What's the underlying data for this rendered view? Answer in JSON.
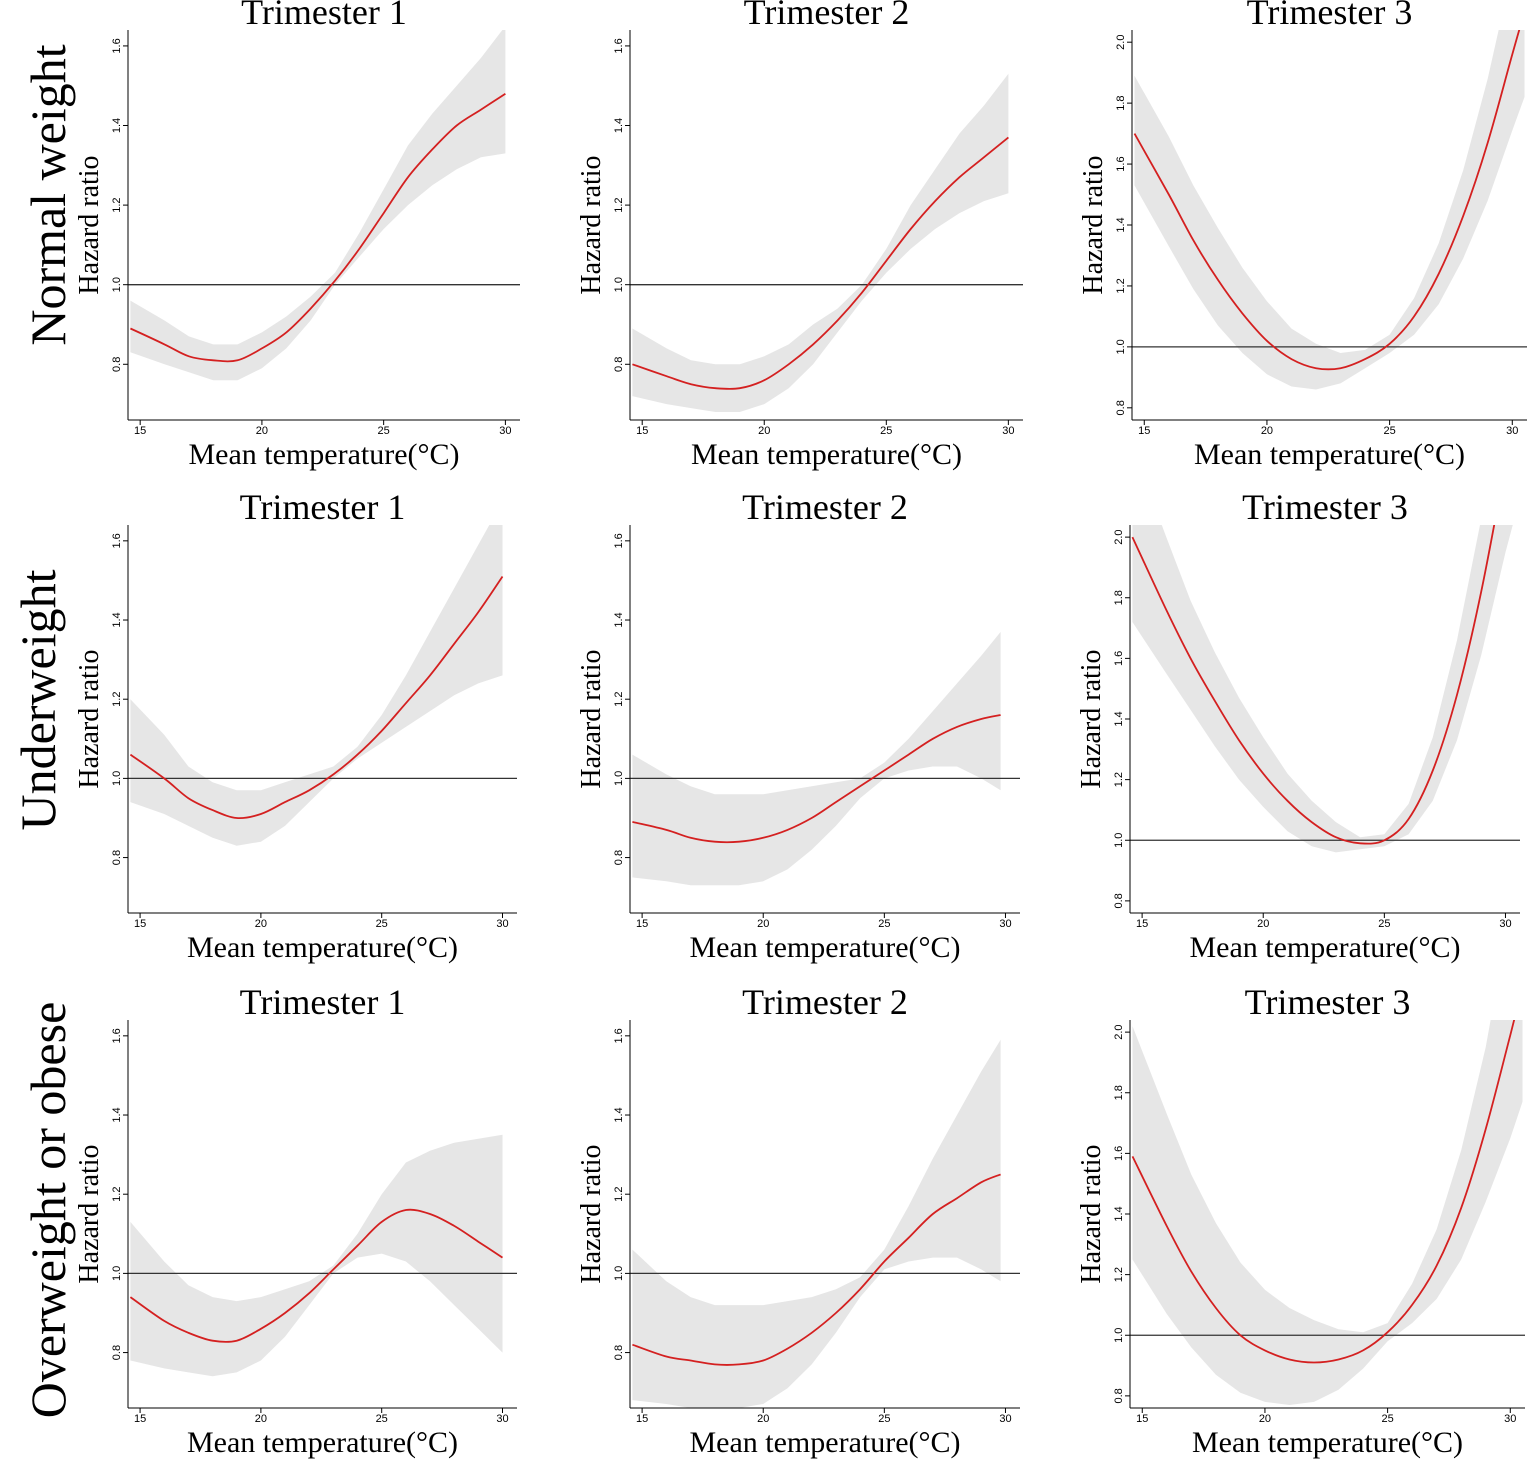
{
  "figure": {
    "row_labels": [
      "Normal weight",
      "Underweight",
      "Overweight or obese"
    ],
    "x_axis_label": "Mean temperature(°C)",
    "y_axis_label": "Hazard ratio",
    "colors": {
      "curve": "#d42020",
      "band": "#e6e6e6",
      "reference": "#333333",
      "axis": "#000000"
    }
  },
  "chart_data": [
    {
      "type": "line",
      "panel": "normal-weight-trimester-1",
      "row": "Normal weight",
      "title": "Trimester 1",
      "xlabel": "Mean temperature(°C)",
      "ylabel": "Hazard ratio",
      "xlim": [
        14.5,
        30.6
      ],
      "ylim": [
        0.66,
        1.64
      ],
      "xticks": [
        15,
        20,
        25,
        30
      ],
      "xtick_labels": [
        "15",
        "20",
        "25",
        "30"
      ],
      "yticks": [
        0.8,
        1.0,
        1.2,
        1.4,
        1.6
      ],
      "ytick_labels": [
        "0.8",
        "1.0",
        "1.2",
        "1.4",
        "1.6"
      ],
      "reference_line": 1.0,
      "x": [
        14.6,
        16,
        17,
        18,
        19,
        20,
        21,
        22,
        23,
        24,
        25,
        26,
        27,
        28,
        29,
        30
      ],
      "hr": [
        0.89,
        0.85,
        0.82,
        0.81,
        0.81,
        0.84,
        0.88,
        0.94,
        1.01,
        1.09,
        1.18,
        1.27,
        1.34,
        1.4,
        1.44,
        1.48
      ],
      "lower": [
        0.83,
        0.8,
        0.78,
        0.76,
        0.76,
        0.79,
        0.84,
        0.91,
        1.0,
        1.07,
        1.14,
        1.2,
        1.25,
        1.29,
        1.32,
        1.33
      ],
      "upper": [
        0.96,
        0.91,
        0.87,
        0.85,
        0.85,
        0.88,
        0.92,
        0.97,
        1.03,
        1.13,
        1.24,
        1.35,
        1.43,
        1.5,
        1.57,
        1.65
      ]
    },
    {
      "type": "line",
      "panel": "normal-weight-trimester-2",
      "row": "Normal weight",
      "title": "Trimester 2",
      "xlabel": "Mean temperature(°C)",
      "ylabel": "Hazard ratio",
      "xlim": [
        14.5,
        30.6
      ],
      "ylim": [
        0.66,
        1.64
      ],
      "xticks": [
        15,
        20,
        25,
        30
      ],
      "xtick_labels": [
        "15",
        "20",
        "25",
        "30"
      ],
      "yticks": [
        0.8,
        1.0,
        1.2,
        1.4,
        1.6
      ],
      "ytick_labels": [
        "0.8",
        "1.0",
        "1.2",
        "1.4",
        "1.6"
      ],
      "reference_line": 1.0,
      "x": [
        14.6,
        16,
        17,
        18,
        19,
        20,
        21,
        22,
        23,
        24,
        25,
        26,
        27,
        28,
        29,
        30
      ],
      "hr": [
        0.8,
        0.77,
        0.75,
        0.74,
        0.74,
        0.76,
        0.8,
        0.85,
        0.91,
        0.98,
        1.06,
        1.14,
        1.21,
        1.27,
        1.32,
        1.37
      ],
      "lower": [
        0.72,
        0.7,
        0.69,
        0.68,
        0.68,
        0.7,
        0.74,
        0.8,
        0.88,
        0.96,
        1.03,
        1.09,
        1.14,
        1.18,
        1.21,
        1.23
      ],
      "upper": [
        0.89,
        0.84,
        0.81,
        0.8,
        0.8,
        0.82,
        0.85,
        0.9,
        0.94,
        1.0,
        1.09,
        1.2,
        1.29,
        1.38,
        1.45,
        1.53
      ]
    },
    {
      "type": "line",
      "panel": "normal-weight-trimester-3",
      "row": "Normal weight",
      "title": "Trimester 3",
      "xlabel": "Mean temperature(°C)",
      "ylabel": "Hazard ratio",
      "xlim": [
        14.5,
        30.6
      ],
      "ylim": [
        0.76,
        2.04
      ],
      "xticks": [
        15,
        20,
        25,
        30
      ],
      "xtick_labels": [
        "15",
        "20",
        "25",
        "30"
      ],
      "yticks": [
        0.8,
        1.0,
        1.2,
        1.4,
        1.6,
        1.8,
        2.0
      ],
      "ytick_labels": [
        "0.8",
        "1.0",
        "1.2",
        "1.4",
        "1.6",
        "1.8",
        "2.0"
      ],
      "reference_line": 1.0,
      "x": [
        14.6,
        16,
        17,
        18,
        19,
        20,
        21,
        22,
        23,
        24,
        25,
        26,
        27,
        28,
        29,
        30,
        30.5
      ],
      "hr": [
        1.7,
        1.5,
        1.35,
        1.22,
        1.11,
        1.02,
        0.96,
        0.93,
        0.93,
        0.96,
        1.01,
        1.1,
        1.24,
        1.43,
        1.67,
        1.96,
        2.1
      ],
      "lower": [
        1.53,
        1.33,
        1.19,
        1.07,
        0.98,
        0.91,
        0.87,
        0.86,
        0.88,
        0.93,
        0.98,
        1.04,
        1.14,
        1.29,
        1.48,
        1.71,
        1.82
      ],
      "upper": [
        1.89,
        1.69,
        1.53,
        1.39,
        1.26,
        1.15,
        1.06,
        1.01,
        0.98,
        0.99,
        1.04,
        1.16,
        1.34,
        1.58,
        1.88,
        2.24,
        2.42
      ]
    },
    {
      "type": "line",
      "panel": "underweight-trimester-1",
      "row": "Underweight",
      "title": "Trimester 1",
      "xlabel": "Mean temperature(°C)",
      "ylabel": "Hazard ratio",
      "xlim": [
        14.5,
        30.6
      ],
      "ylim": [
        0.66,
        1.64
      ],
      "xticks": [
        15,
        20,
        25,
        30
      ],
      "xtick_labels": [
        "15",
        "20",
        "25",
        "30"
      ],
      "yticks": [
        0.8,
        1.0,
        1.2,
        1.4,
        1.6
      ],
      "ytick_labels": [
        "0.8",
        "1.0",
        "1.2",
        "1.4",
        "1.6"
      ],
      "reference_line": 1.0,
      "x": [
        14.6,
        16,
        17,
        18,
        19,
        20,
        21,
        22,
        23,
        24,
        25,
        26,
        27,
        28,
        29,
        30
      ],
      "hr": [
        1.06,
        1.0,
        0.95,
        0.92,
        0.9,
        0.91,
        0.94,
        0.97,
        1.01,
        1.06,
        1.12,
        1.19,
        1.26,
        1.34,
        1.42,
        1.51
      ],
      "lower": [
        0.94,
        0.91,
        0.88,
        0.85,
        0.83,
        0.84,
        0.88,
        0.94,
        1.0,
        1.05,
        1.09,
        1.13,
        1.17,
        1.21,
        1.24,
        1.26
      ],
      "upper": [
        1.2,
        1.11,
        1.03,
        0.99,
        0.97,
        0.97,
        0.99,
        1.01,
        1.03,
        1.08,
        1.16,
        1.26,
        1.37,
        1.48,
        1.59,
        1.7
      ]
    },
    {
      "type": "line",
      "panel": "underweight-trimester-2",
      "row": "Underweight",
      "title": "Trimester 2",
      "xlabel": "Mean temperature(°C)",
      "ylabel": "Hazard ratio",
      "xlim": [
        14.5,
        30.6
      ],
      "ylim": [
        0.66,
        1.64
      ],
      "xticks": [
        15,
        20,
        25,
        30
      ],
      "xtick_labels": [
        "15",
        "20",
        "25",
        "30"
      ],
      "yticks": [
        0.8,
        1.0,
        1.2,
        1.4,
        1.6
      ],
      "ytick_labels": [
        "0.8",
        "1.0",
        "1.2",
        "1.4",
        "1.6"
      ],
      "reference_line": 1.0,
      "x": [
        14.6,
        16,
        17,
        18,
        19,
        20,
        21,
        22,
        23,
        24,
        25,
        26,
        27,
        28,
        29,
        29.8
      ],
      "hr": [
        0.89,
        0.87,
        0.85,
        0.84,
        0.84,
        0.85,
        0.87,
        0.9,
        0.94,
        0.98,
        1.02,
        1.06,
        1.1,
        1.13,
        1.15,
        1.16
      ],
      "lower": [
        0.75,
        0.74,
        0.73,
        0.73,
        0.73,
        0.74,
        0.77,
        0.82,
        0.88,
        0.95,
        1.0,
        1.02,
        1.03,
        1.03,
        1.0,
        0.97
      ],
      "upper": [
        1.06,
        1.01,
        0.98,
        0.96,
        0.96,
        0.96,
        0.97,
        0.98,
        0.99,
        1.0,
        1.04,
        1.1,
        1.17,
        1.24,
        1.31,
        1.37
      ]
    },
    {
      "type": "line",
      "panel": "underweight-trimester-3",
      "row": "Underweight",
      "title": "Trimester 3",
      "xlabel": "Mean temperature(°C)",
      "ylabel": "Hazard ratio",
      "xlim": [
        14.5,
        30.6
      ],
      "ylim": [
        0.76,
        2.04
      ],
      "xticks": [
        15,
        20,
        25,
        30
      ],
      "xtick_labels": [
        "15",
        "20",
        "25",
        "30"
      ],
      "yticks": [
        0.8,
        1.0,
        1.2,
        1.4,
        1.6,
        1.8,
        2.0
      ],
      "ytick_labels": [
        "0.8",
        "1.0",
        "1.2",
        "1.4",
        "1.6",
        "1.8",
        "2.0"
      ],
      "reference_line": 1.0,
      "x": [
        14.6,
        16,
        17,
        18,
        19,
        20,
        21,
        22,
        23,
        24,
        25,
        26,
        27,
        28,
        29,
        30,
        30.5
      ],
      "hr": [
        2.0,
        1.76,
        1.6,
        1.46,
        1.33,
        1.22,
        1.13,
        1.06,
        1.01,
        0.99,
        1.0,
        1.07,
        1.23,
        1.48,
        1.82,
        2.24,
        2.45
      ],
      "lower": [
        1.72,
        1.55,
        1.43,
        1.31,
        1.2,
        1.11,
        1.03,
        0.98,
        0.96,
        0.97,
        0.98,
        1.02,
        1.13,
        1.33,
        1.61,
        1.95,
        2.1
      ],
      "upper": [
        2.3,
        2.0,
        1.79,
        1.62,
        1.47,
        1.34,
        1.22,
        1.13,
        1.06,
        1.01,
        1.02,
        1.12,
        1.34,
        1.66,
        2.06,
        2.55,
        2.8
      ]
    },
    {
      "type": "line",
      "panel": "overweight-or-obese-trimester-1",
      "row": "Overweight or obese",
      "title": "Trimester 1",
      "xlabel": "Mean temperature(°C)",
      "ylabel": "Hazard ratio",
      "xlim": [
        14.5,
        30.6
      ],
      "ylim": [
        0.66,
        1.64
      ],
      "xticks": [
        15,
        20,
        25,
        30
      ],
      "xtick_labels": [
        "15",
        "20",
        "25",
        "30"
      ],
      "yticks": [
        0.8,
        1.0,
        1.2,
        1.4,
        1.6
      ],
      "ytick_labels": [
        "0.8",
        "1.0",
        "1.2",
        "1.4",
        "1.6"
      ],
      "reference_line": 1.0,
      "x": [
        14.6,
        16,
        17,
        18,
        19,
        20,
        21,
        22,
        23,
        24,
        25,
        26,
        27,
        28,
        29,
        30
      ],
      "hr": [
        0.94,
        0.88,
        0.85,
        0.83,
        0.83,
        0.86,
        0.9,
        0.95,
        1.01,
        1.07,
        1.13,
        1.16,
        1.15,
        1.12,
        1.08,
        1.04
      ],
      "lower": [
        0.78,
        0.76,
        0.75,
        0.74,
        0.75,
        0.78,
        0.84,
        0.92,
        1.0,
        1.04,
        1.05,
        1.03,
        0.98,
        0.92,
        0.86,
        0.8
      ],
      "upper": [
        1.13,
        1.03,
        0.97,
        0.94,
        0.93,
        0.94,
        0.96,
        0.98,
        1.02,
        1.1,
        1.2,
        1.28,
        1.31,
        1.33,
        1.34,
        1.35
      ]
    },
    {
      "type": "line",
      "panel": "overweight-or-obese-trimester-2",
      "row": "Overweight or obese",
      "title": "Trimester 2",
      "xlabel": "Mean temperature(°C)",
      "ylabel": "Hazard ratio",
      "xlim": [
        14.5,
        30.6
      ],
      "ylim": [
        0.66,
        1.64
      ],
      "xticks": [
        15,
        20,
        25,
        30
      ],
      "xtick_labels": [
        "15",
        "20",
        "25",
        "30"
      ],
      "yticks": [
        0.8,
        1.0,
        1.2,
        1.4,
        1.6
      ],
      "ytick_labels": [
        "0.8",
        "1.0",
        "1.2",
        "1.4",
        "1.6"
      ],
      "reference_line": 1.0,
      "x": [
        14.6,
        16,
        17,
        18,
        19,
        20,
        21,
        22,
        23,
        24,
        25,
        26,
        27,
        28,
        29,
        29.8
      ],
      "hr": [
        0.82,
        0.79,
        0.78,
        0.77,
        0.77,
        0.78,
        0.81,
        0.85,
        0.9,
        0.96,
        1.03,
        1.09,
        1.15,
        1.19,
        1.23,
        1.25
      ],
      "lower": [
        0.68,
        0.67,
        0.66,
        0.66,
        0.66,
        0.67,
        0.71,
        0.77,
        0.85,
        0.94,
        1.01,
        1.03,
        1.04,
        1.04,
        1.01,
        0.98
      ],
      "upper": [
        1.06,
        0.98,
        0.94,
        0.92,
        0.92,
        0.92,
        0.93,
        0.94,
        0.96,
        0.99,
        1.06,
        1.17,
        1.29,
        1.4,
        1.51,
        1.59
      ]
    },
    {
      "type": "line",
      "panel": "overweight-or-obese-trimester-3",
      "row": "Overweight or obese",
      "title": "Trimester 3",
      "xlabel": "Mean temperature(°C)",
      "ylabel": "Hazard ratio",
      "xlim": [
        14.5,
        30.6
      ],
      "ylim": [
        0.76,
        2.04
      ],
      "xticks": [
        15,
        20,
        25,
        30
      ],
      "xtick_labels": [
        "15",
        "20",
        "25",
        "30"
      ],
      "yticks": [
        0.8,
        1.0,
        1.2,
        1.4,
        1.6,
        1.8,
        2.0
      ],
      "ytick_labels": [
        "0.8",
        "1.0",
        "1.2",
        "1.4",
        "1.6",
        "1.8",
        "2.0"
      ],
      "reference_line": 1.0,
      "x": [
        14.6,
        16,
        17,
        18,
        19,
        20,
        21,
        22,
        23,
        24,
        25,
        26,
        27,
        28,
        29,
        30,
        30.5
      ],
      "hr": [
        1.59,
        1.36,
        1.21,
        1.09,
        1.0,
        0.95,
        0.92,
        0.91,
        0.92,
        0.95,
        1.01,
        1.1,
        1.23,
        1.42,
        1.68,
        1.99,
        2.15
      ],
      "lower": [
        1.25,
        1.07,
        0.96,
        0.87,
        0.81,
        0.78,
        0.77,
        0.78,
        0.82,
        0.89,
        0.98,
        1.04,
        1.12,
        1.25,
        1.44,
        1.65,
        1.77
      ],
      "upper": [
        2.02,
        1.73,
        1.53,
        1.37,
        1.24,
        1.15,
        1.09,
        1.05,
        1.02,
        1.01,
        1.04,
        1.17,
        1.35,
        1.61,
        1.95,
        2.4,
        2.6
      ]
    }
  ]
}
